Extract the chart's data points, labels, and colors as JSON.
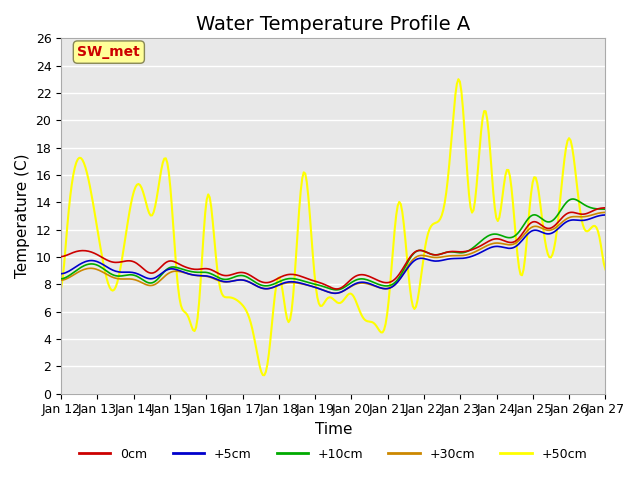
{
  "title": "Water Temperature Profile A",
  "xlabel": "Time",
  "ylabel": "Temperature (C)",
  "xlim": [
    0,
    15
  ],
  "ylim": [
    0,
    26
  ],
  "yticks": [
    0,
    2,
    4,
    6,
    8,
    10,
    12,
    14,
    16,
    18,
    20,
    22,
    24,
    26
  ],
  "xtick_labels": [
    "Jan 12",
    "Jan 13",
    "Jan 14",
    "Jan 15",
    "Jan 16",
    "Jan 17",
    "Jan 18",
    "Jan 19",
    "Jan 20",
    "Jan 21",
    "Jan 22",
    "Jan 23",
    "Jan 24",
    "Jan 25",
    "Jan 26",
    "Jan 27"
  ],
  "line_colors": {
    "0cm": "#cc0000",
    "+5cm": "#0000cc",
    "+10cm": "#00aa00",
    "+30cm": "#cc8800",
    "+50cm": "#ffff00"
  },
  "line_widths": {
    "0cm": 1.2,
    "+5cm": 1.2,
    "+10cm": 1.2,
    "+30cm": 1.2,
    "+50cm": 1.5
  },
  "annotation_text": "SW_met",
  "annotation_color": "#cc0000",
  "annotation_bg": "#ffff99",
  "background_color": "#e8e8e8",
  "plot_bg": "#e8e8e8",
  "legend_labels": [
    "0cm",
    "+5cm",
    "+10cm",
    "+30cm",
    "+50cm"
  ],
  "title_fontsize": 14,
  "axis_label_fontsize": 11,
  "tick_fontsize": 9
}
